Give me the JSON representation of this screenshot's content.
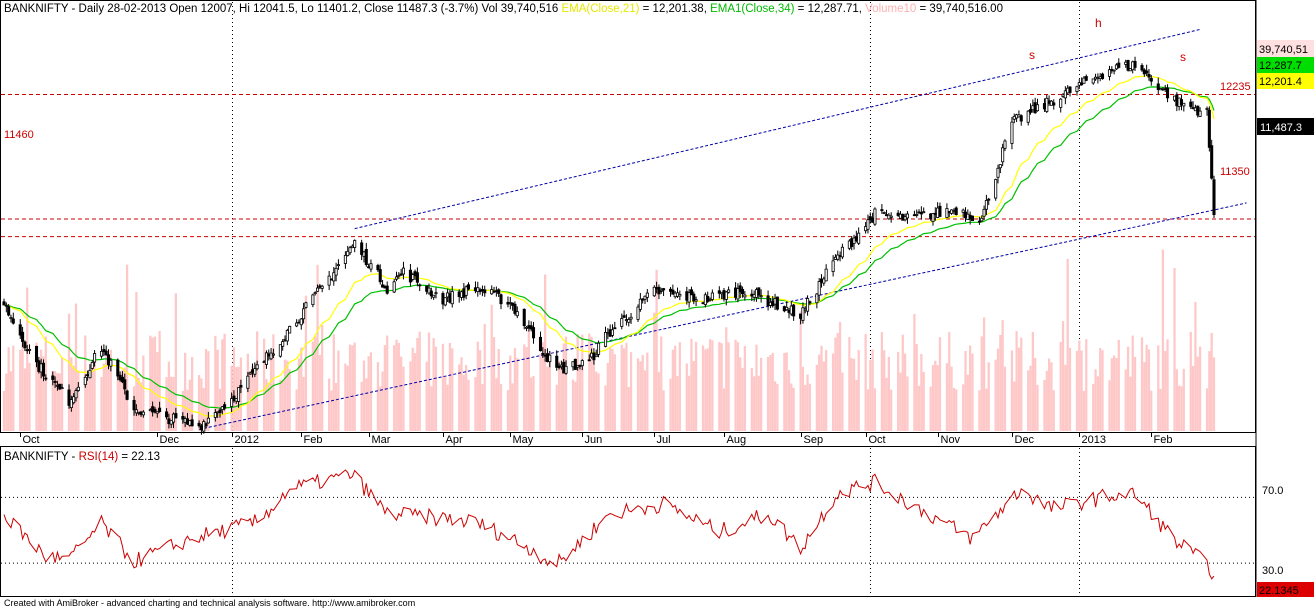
{
  "header": {
    "symbol": "BANKNIFTY",
    "prefix": " - Daily 28-02-2013 Open 12007, Hi 12041.5, Lo 11401.2, Close 11487.3 (-3.7%) Vol 39,740,516 ",
    "ema21_label": "EMA(Close,21)",
    "ema21_value": " = 12,201.38, ",
    "ema34_label": "EMA1(Close,34)",
    "ema34_value": " = 12,287.71, ",
    "vol_label": "Volume10",
    "vol_value": " = 39,740,516.00"
  },
  "rsi_header": {
    "symbol": "BANKNIFTY",
    "label": "RSI(14)",
    "value": " = 22.13"
  },
  "footer": "Created with AmiBroker - advanced charting and technical analysis software. http://www.amibroker.com",
  "price_labels": {
    "volume": "39,740,51",
    "ema34": "12,287.7",
    "ema21": "12,201.4",
    "close": "11,487.3",
    "level_12235": "12235",
    "level_11460": "11460",
    "level_11350": "11350",
    "rsi_value": "22.1345",
    "rsi_70": "70.0",
    "rsi_30": "30.0"
  },
  "annotations": {
    "left_shoulder": "s",
    "head": "h",
    "right_shoulder": "s"
  },
  "colors": {
    "ema21": "#ffff00",
    "ema34": "#00c000",
    "volume": "#ffc8c8",
    "rsi": "#cc0000",
    "level": "#cc0000",
    "trendline": "#0000aa",
    "close_bg": "#000000",
    "ema34_bg": "#00dd00",
    "ema21_bg": "#ffff00",
    "volume_bg": "#ffe0e0",
    "rsi_bg": "#dd0000"
  },
  "chart_data": [
    {
      "type": "candlestick",
      "title": "BANKNIFTY - Daily 28-02-2013",
      "x_tick_labels": [
        "Oct",
        "Dec",
        "2012",
        "Feb",
        "Mar",
        "Apr",
        "May",
        "Jun",
        "Jul",
        "Aug",
        "Sep",
        "Oct",
        "Nov",
        "Dec",
        "2013",
        "Feb"
      ],
      "ylim": [
        10140,
        12730
      ],
      "horizontal_levels": [
        12235,
        11460,
        11350
      ],
      "anchors": [
        {
          "date": "2011-09-26",
          "close": 10930
        },
        {
          "date": "2011-10-10",
          "close": 10560
        },
        {
          "date": "2011-10-24",
          "close": 10330
        },
        {
          "date": "2011-11-07",
          "close": 10660
        },
        {
          "date": "2011-11-21",
          "close": 10280
        },
        {
          "date": "2011-12-19",
          "close": 10170
        },
        {
          "date": "2012-01-02",
          "close": 10340
        },
        {
          "date": "2012-01-16",
          "close": 10580
        },
        {
          "date": "2012-02-06",
          "close": 10960
        },
        {
          "date": "2012-02-24",
          "close": 11310
        },
        {
          "date": "2012-03-09",
          "close": 11030
        },
        {
          "date": "2012-03-16",
          "close": 11130
        },
        {
          "date": "2012-04-02",
          "close": 10960
        },
        {
          "date": "2012-04-16",
          "close": 11030
        },
        {
          "date": "2012-05-01",
          "close": 10940
        },
        {
          "date": "2012-05-21",
          "close": 10520
        },
        {
          "date": "2012-06-04",
          "close": 10570
        },
        {
          "date": "2012-06-11",
          "close": 10730
        },
        {
          "date": "2012-07-02",
          "close": 11010
        },
        {
          "date": "2012-07-23",
          "close": 10960
        },
        {
          "date": "2012-08-10",
          "close": 11020
        },
        {
          "date": "2012-09-03",
          "close": 10860
        },
        {
          "date": "2012-09-17",
          "close": 11190
        },
        {
          "date": "2012-10-05",
          "close": 11490
        },
        {
          "date": "2012-10-19",
          "close": 11460
        },
        {
          "date": "2012-11-09",
          "close": 11520
        },
        {
          "date": "2012-11-20",
          "close": 11460
        },
        {
          "date": "2012-12-03",
          "close": 12060
        },
        {
          "date": "2012-12-17",
          "close": 12170
        },
        {
          "date": "2013-01-14",
          "close": 12390
        },
        {
          "date": "2013-01-25",
          "close": 12420
        },
        {
          "date": "2013-02-12",
          "close": 12190
        },
        {
          "date": "2013-02-25",
          "close": 12120
        },
        {
          "date": "2013-02-28",
          "close": 11487.3
        }
      ]
    },
    {
      "type": "line",
      "title": "BANKNIFTY - RSI(14)",
      "ylim": [
        10,
        100
      ],
      "reference_lines": [
        70,
        30
      ],
      "anchors": [
        {
          "date": "2011-09-26",
          "value": 59
        },
        {
          "date": "2011-10-14",
          "value": 34
        },
        {
          "date": "2011-10-24",
          "value": 32
        },
        {
          "date": "2011-11-07",
          "value": 54
        },
        {
          "date": "2011-11-21",
          "value": 31
        },
        {
          "date": "2011-12-16",
          "value": 45
        },
        {
          "date": "2012-01-13",
          "value": 55
        },
        {
          "date": "2012-01-27",
          "value": 75
        },
        {
          "date": "2012-02-23",
          "value": 84
        },
        {
          "date": "2012-03-09",
          "value": 60
        },
        {
          "date": "2012-03-27",
          "value": 58
        },
        {
          "date": "2012-04-16",
          "value": 55
        },
        {
          "date": "2012-05-03",
          "value": 44
        },
        {
          "date": "2012-05-21",
          "value": 29
        },
        {
          "date": "2012-06-13",
          "value": 60
        },
        {
          "date": "2012-07-06",
          "value": 66
        },
        {
          "date": "2012-07-30",
          "value": 49
        },
        {
          "date": "2012-08-20",
          "value": 60
        },
        {
          "date": "2012-09-03",
          "value": 39
        },
        {
          "date": "2012-09-19",
          "value": 73
        },
        {
          "date": "2012-10-05",
          "value": 79
        },
        {
          "date": "2012-10-29",
          "value": 59
        },
        {
          "date": "2012-11-16",
          "value": 45
        },
        {
          "date": "2012-12-07",
          "value": 75
        },
        {
          "date": "2012-12-20",
          "value": 63
        },
        {
          "date": "2013-01-14",
          "value": 71
        },
        {
          "date": "2013-01-25",
          "value": 72
        },
        {
          "date": "2013-02-11",
          "value": 44
        },
        {
          "date": "2013-02-26",
          "value": 28
        },
        {
          "date": "2013-02-28",
          "value": 22.13
        }
      ]
    }
  ]
}
